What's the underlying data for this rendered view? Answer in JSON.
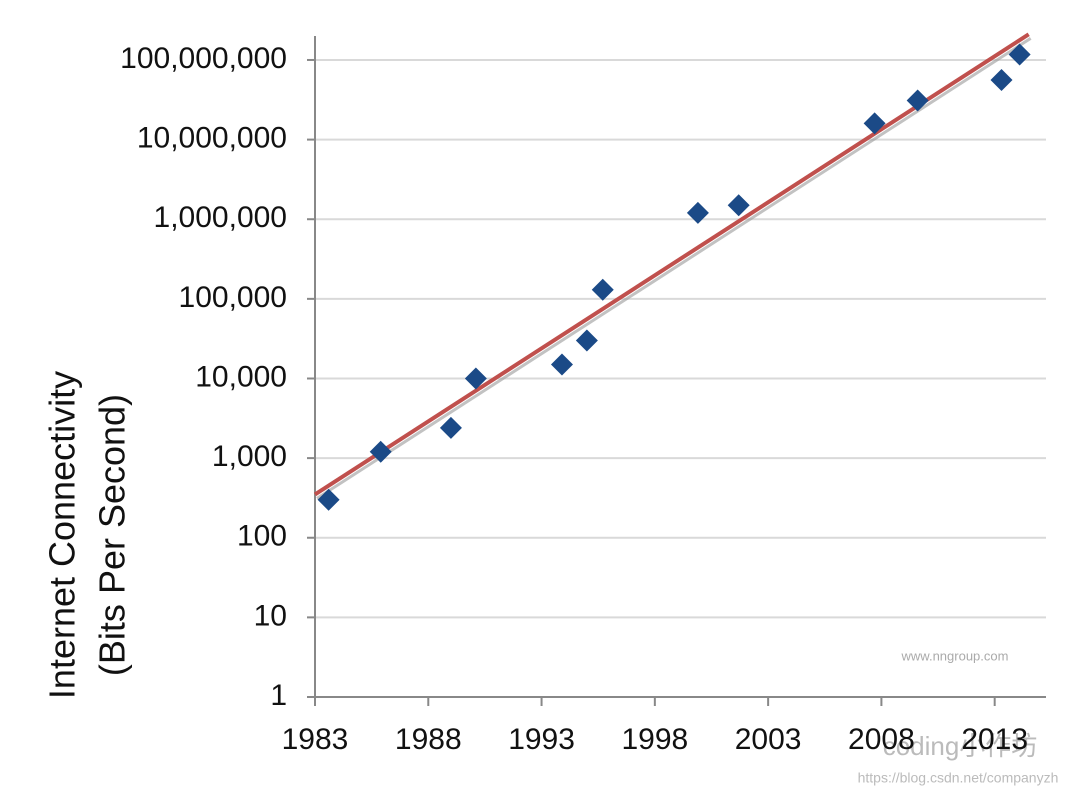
{
  "chart_data": {
    "type": "scatter",
    "y_label": [
      "Internet Connectivity",
      "(Bits Per Second)"
    ],
    "x": [
      1983.6,
      1985.9,
      1989.0,
      1990.1,
      1993.9,
      1995.0,
      1995.7,
      1999.9,
      2001.7,
      2007.7,
      2009.6,
      2013.3,
      2014.1
    ],
    "values": [
      300,
      1200,
      2400,
      10000,
      15000,
      30000,
      130000,
      1200000,
      1500000,
      16000000,
      31000000,
      56000000,
      117000000
    ],
    "color": "#1b4a87",
    "trendline": {
      "x": [
        1983,
        2014.5
      ],
      "values": [
        350,
        210000000
      ],
      "color": "#c0504d"
    },
    "xlim": [
      1983,
      2015
    ],
    "xticks": [
      1983,
      1988,
      1993,
      1998,
      2003,
      2008,
      2013
    ],
    "ylim": [
      1,
      200000000
    ],
    "yticks": [
      1,
      10,
      100,
      {
        "value": 1000,
        "label": "1,000"
      },
      {
        "value": 10000,
        "label": "10,000"
      },
      {
        "value": 100000,
        "label": "100,000"
      },
      {
        "value": 1000000,
        "label": "1,000,000"
      },
      {
        "value": 10000000,
        "label": "10,000,000"
      },
      {
        "value": 100000000,
        "label": "100,000,000"
      }
    ],
    "log_y": true,
    "grid": true,
    "annotations": [
      "www.nngroup.com",
      "coding小作坊",
      "https://blog.csdn.net/companyzh"
    ]
  }
}
